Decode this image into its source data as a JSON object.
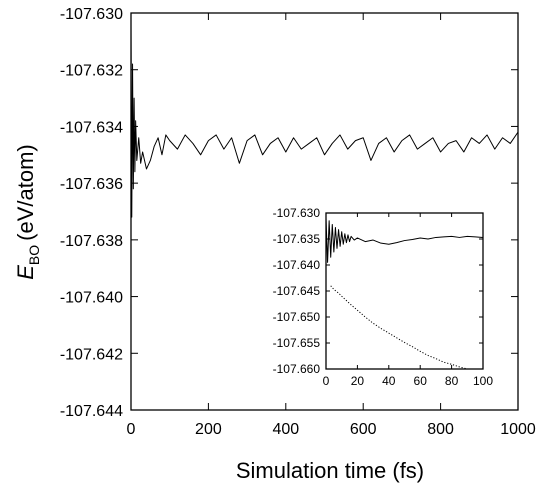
{
  "chart_data": [
    {
      "type": "line",
      "title": "",
      "xlabel": "Simulation time (fs)",
      "ylabel": {
        "symbol": "E",
        "subscript": "BO",
        "unit": "(eV/atom)"
      },
      "xlim": [
        0,
        1000
      ],
      "ylim": [
        -107.644,
        -107.63
      ],
      "x_ticks": [
        0,
        200,
        400,
        600,
        800,
        1000
      ],
      "y_ticks": [
        -107.63,
        -107.632,
        -107.634,
        -107.636,
        -107.638,
        -107.64,
        -107.642,
        -107.644
      ],
      "x_tick_labels": [
        "0",
        "200",
        "400",
        "600",
        "800",
        "1000"
      ],
      "y_tick_labels": [
        "-107.630",
        "-107.632",
        "-107.634",
        "-107.636",
        "-107.638",
        "-107.640",
        "-107.642",
        "-107.644"
      ],
      "grid": false,
      "legend": "none",
      "series": [
        {
          "style": "solid",
          "x": [
            0,
            2,
            4,
            6,
            8,
            10,
            12,
            15,
            20,
            25,
            30,
            40,
            50,
            60,
            70,
            80,
            90,
            100,
            120,
            140,
            160,
            180,
            200,
            220,
            240,
            260,
            280,
            300,
            320,
            340,
            360,
            380,
            400,
            420,
            440,
            460,
            480,
            500,
            520,
            540,
            560,
            580,
            600,
            620,
            640,
            660,
            680,
            700,
            720,
            740,
            760,
            780,
            800,
            820,
            840,
            860,
            880,
            900,
            920,
            940,
            960,
            980,
            1000
          ],
          "y": [
            -107.6305,
            -107.6372,
            -107.6318,
            -107.6362,
            -107.633,
            -107.6356,
            -107.6338,
            -107.6352,
            -107.6344,
            -107.6353,
            -107.6349,
            -107.6355,
            -107.6352,
            -107.6347,
            -107.6344,
            -107.635,
            -107.6343,
            -107.6345,
            -107.6348,
            -107.6343,
            -107.6346,
            -107.635,
            -107.6345,
            -107.6343,
            -107.6348,
            -107.6344,
            -107.6353,
            -107.6345,
            -107.6343,
            -107.635,
            -107.6346,
            -107.6344,
            -107.6349,
            -107.6344,
            -107.6348,
            -107.6346,
            -107.6344,
            -107.635,
            -107.6346,
            -107.6343,
            -107.6348,
            -107.6345,
            -107.6344,
            -107.6352,
            -107.6346,
            -107.6344,
            -107.6349,
            -107.6345,
            -107.6343,
            -107.6348,
            -107.6346,
            -107.6344,
            -107.6349,
            -107.6346,
            -107.6345,
            -107.6349,
            -107.6344,
            -107.6346,
            -107.6343,
            -107.6348,
            -107.6344,
            -107.6346,
            -107.6342
          ]
        }
      ],
      "inset": {
        "type": "line",
        "xlim": [
          0,
          100
        ],
        "ylim": [
          -107.66,
          -107.63
        ],
        "x_ticks": [
          0,
          20,
          40,
          60,
          80,
          100
        ],
        "y_ticks": [
          -107.63,
          -107.635,
          -107.64,
          -107.645,
          -107.65,
          -107.655,
          -107.66
        ],
        "x_tick_labels": [
          "0",
          "20",
          "40",
          "60",
          "80",
          "100"
        ],
        "y_tick_labels": [
          "-107.630",
          "-107.635",
          "-107.640",
          "-107.645",
          "-107.650",
          "-107.655",
          "-107.660"
        ],
        "series": [
          {
            "style": "solid",
            "x": [
              0,
              1,
              2,
              3,
              4,
              5,
              6,
              7,
              8,
              9,
              10,
              11,
              12,
              13,
              14,
              15,
              16,
              18,
              20,
              25,
              30,
              35,
              40,
              45,
              50,
              55,
              60,
              65,
              70,
              75,
              80,
              85,
              90,
              95,
              100
            ],
            "y": [
              -107.631,
              -107.6395,
              -107.6315,
              -107.6385,
              -107.6322,
              -107.6375,
              -107.6328,
              -107.6368,
              -107.6332,
              -107.6364,
              -107.6336,
              -107.636,
              -107.634,
              -107.6357,
              -107.6342,
              -107.6355,
              -107.6345,
              -107.6352,
              -107.6348,
              -107.6355,
              -107.6352,
              -107.6358,
              -107.636,
              -107.6357,
              -107.6353,
              -107.6351,
              -107.6348,
              -107.635,
              -107.6347,
              -107.6346,
              -107.6345,
              -107.6347,
              -107.6345,
              -107.6346,
              -107.6347
            ]
          },
          {
            "style": "dotted",
            "x": [
              3,
              5,
              8,
              10,
              15,
              20,
              25,
              30,
              35,
              40,
              45,
              50,
              55,
              60,
              65,
              70,
              75,
              80,
              85,
              90
            ],
            "y": [
              -107.644,
              -107.6447,
              -107.6454,
              -107.646,
              -107.6474,
              -107.6487,
              -107.65,
              -107.6512,
              -107.6522,
              -107.6531,
              -107.654,
              -107.6549,
              -107.6557,
              -107.6566,
              -107.6574,
              -107.658,
              -107.6587,
              -107.6591,
              -107.6596,
              -107.66
            ]
          }
        ]
      }
    }
  ]
}
